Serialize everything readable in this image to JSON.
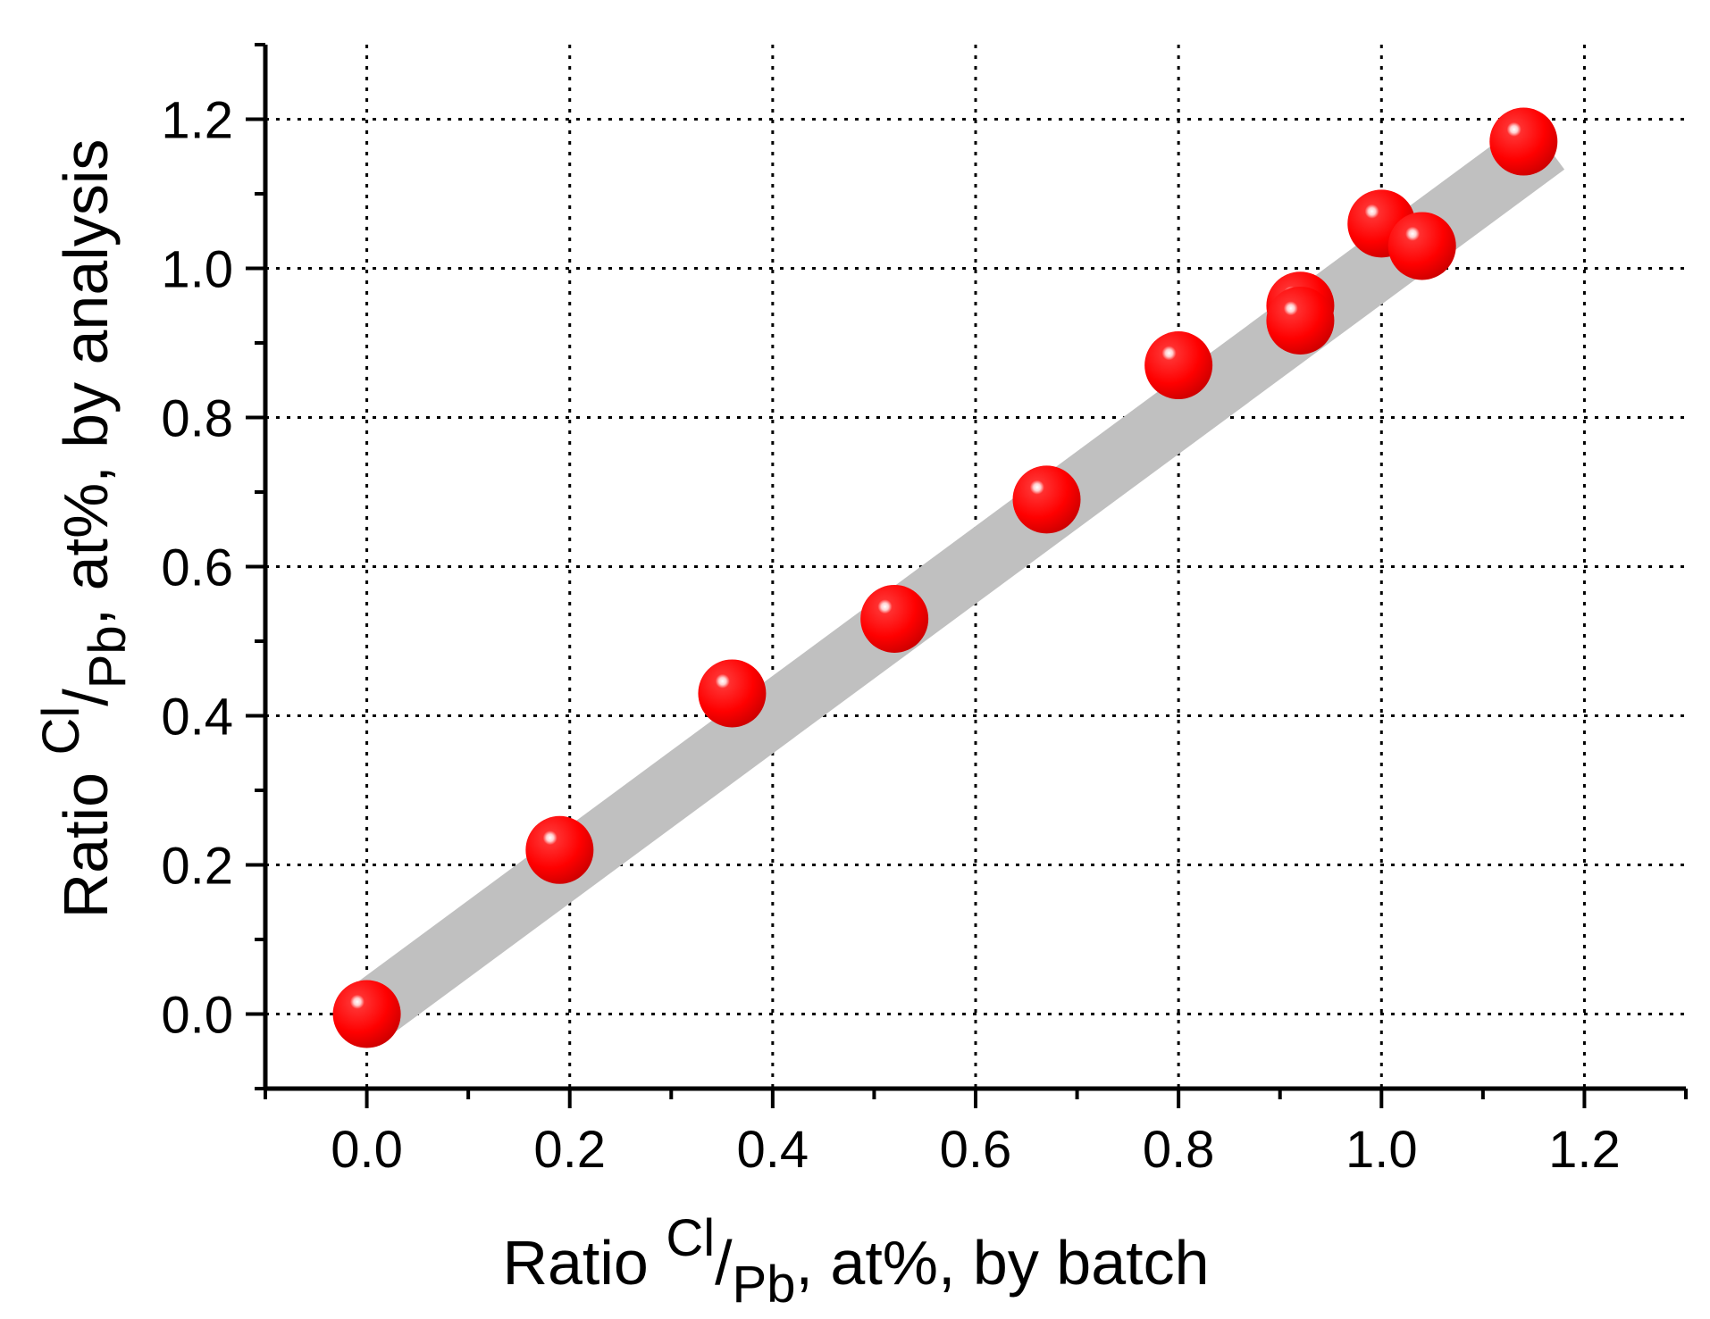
{
  "chart_data": {
    "type": "scatter",
    "title": "",
    "xlabel": {
      "prefix": "Ratio ",
      "numerator": "Cl",
      "slash": "/",
      "denominator": "Pb",
      "suffix": ", at%, by batch"
    },
    "ylabel": {
      "prefix": "Ratio ",
      "numerator": "Cl",
      "slash": "/",
      "denominator": "Pb",
      "suffix": ", at%, by analysis"
    },
    "xlim": [
      -0.1,
      1.3
    ],
    "ylim": [
      -0.1,
      1.3
    ],
    "xticks": [
      "0.0",
      "0.2",
      "0.4",
      "0.6",
      "0.8",
      "1.0",
      "1.2"
    ],
    "yticks": [
      "0.0",
      "0.2",
      "0.4",
      "0.6",
      "0.8",
      "1.0",
      "1.2"
    ],
    "grid": true,
    "series": [
      {
        "x": [
          0.0,
          0.19,
          0.36,
          0.52,
          0.67,
          0.8,
          0.92,
          0.92,
          1.0,
          1.04,
          1.14
        ],
        "y": [
          0.0,
          0.22,
          0.43,
          0.53,
          0.69,
          0.87,
          0.95,
          0.93,
          1.06,
          1.03,
          1.17
        ],
        "color": "#ff0000"
      }
    ],
    "trend_band": {
      "x": [
        0.0,
        1.14
      ],
      "y": [
        0.0,
        1.14
      ],
      "color": "#c0c0c0"
    }
  }
}
